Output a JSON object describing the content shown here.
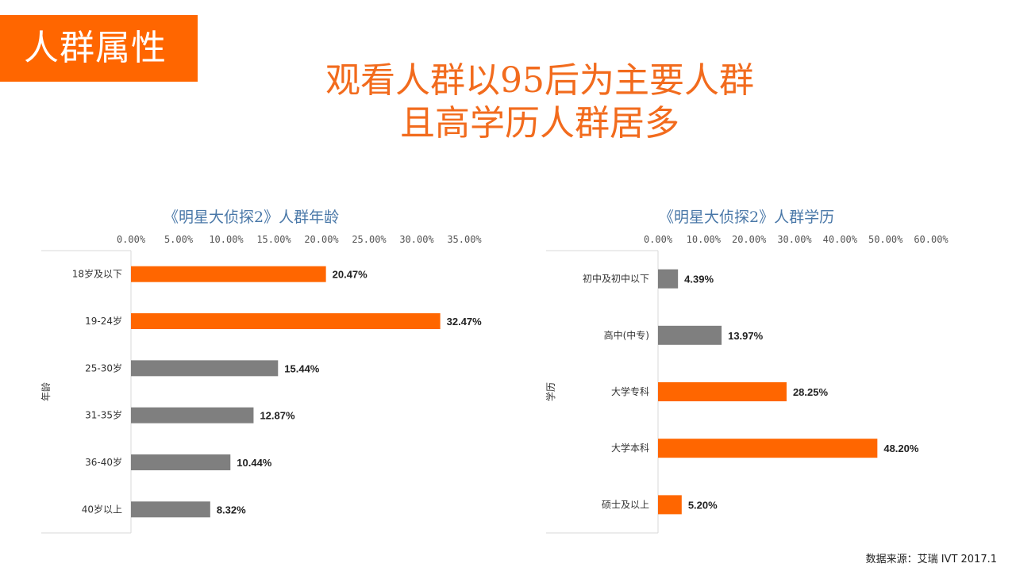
{
  "section_tag": "人群属性",
  "headline": {
    "line1": "观看人群以95后为主要人群",
    "line2": "且高学历人群居多"
  },
  "colors": {
    "accent": "#ff6600",
    "gray_bar": "#7f7f7f",
    "title_blue": "#4a78a8"
  },
  "chart_data": [
    {
      "type": "bar",
      "orientation": "horizontal",
      "title": "《明星大侦探2》人群年龄",
      "ylabel": "年龄",
      "xlim": [
        0,
        35
      ],
      "ticks": [
        "0.00%",
        "5.00%",
        "10.00%",
        "15.00%",
        "20.00%",
        "25.00%",
        "30.00%",
        "35.00%"
      ],
      "tick_values": [
        0,
        5,
        10,
        15,
        20,
        25,
        30,
        35
      ],
      "categories": [
        "18岁及以下",
        "19-24岁",
        "25-30岁",
        "31-35岁",
        "36-40岁",
        "40岁以上"
      ],
      "values": [
        20.47,
        32.47,
        15.44,
        12.87,
        10.44,
        8.32
      ],
      "value_labels": [
        "20.47%",
        "32.47%",
        "15.44%",
        "12.87%",
        "10.44%",
        "8.32%"
      ],
      "highlight": [
        true,
        true,
        false,
        false,
        false,
        false
      ],
      "grid": false
    },
    {
      "type": "bar",
      "orientation": "horizontal",
      "title": "《明星大侦探2》人群学历",
      "ylabel": "学历",
      "xlim": [
        0,
        60
      ],
      "ticks": [
        "0.00%",
        "10.00%",
        "20.00%",
        "30.00%",
        "40.00%",
        "50.00%",
        "60.00%"
      ],
      "tick_values": [
        0,
        10,
        20,
        30,
        40,
        50,
        60
      ],
      "categories": [
        "初中及初中以下",
        "高中(中专)",
        "大学专科",
        "大学本科",
        "硕士及以上"
      ],
      "values": [
        4.39,
        13.97,
        28.25,
        48.2,
        5.2
      ],
      "value_labels": [
        "4.39%",
        "13.97%",
        "28.25%",
        "48.20%",
        "5.20%"
      ],
      "highlight": [
        false,
        false,
        true,
        true,
        true
      ],
      "grid": false
    }
  ],
  "source": "数据来源：艾瑞 IVT  2017.1"
}
